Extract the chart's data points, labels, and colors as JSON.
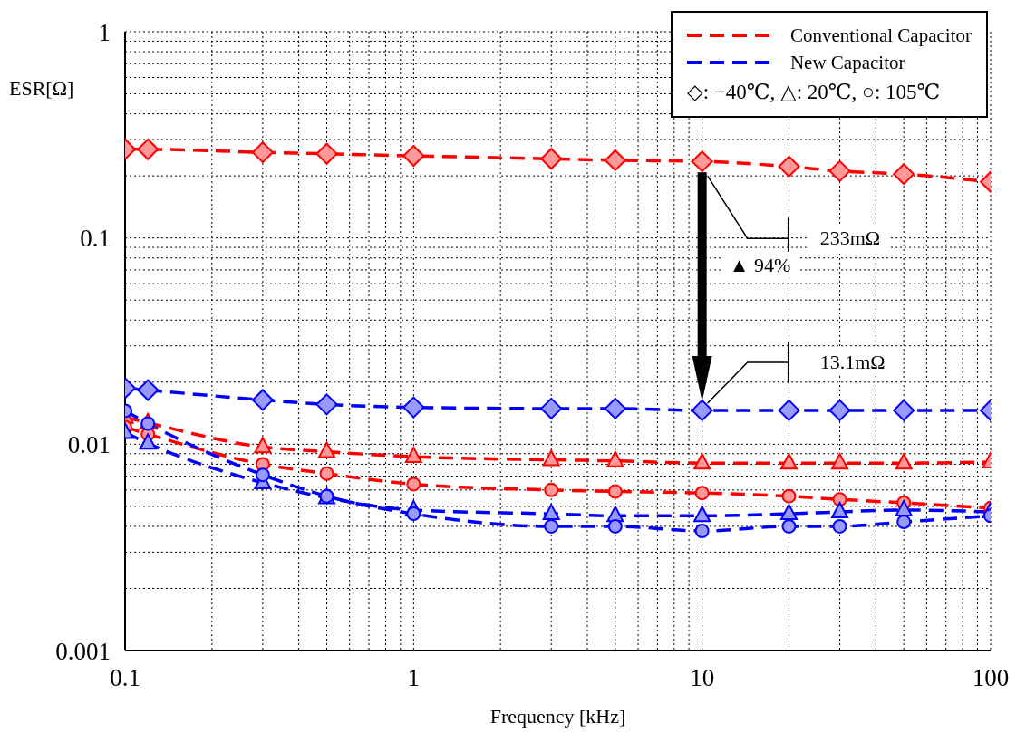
{
  "chart_data": {
    "type": "line",
    "xlabel": "Frequency [kHz]",
    "ylabel": "ESR[Ω]",
    "log": "xy",
    "grid": true,
    "legend": "top right",
    "line_style": "dashed",
    "x": [
      0.1,
      0.12,
      0.3,
      0.5,
      1,
      3,
      5,
      10,
      20,
      30,
      50,
      100
    ],
    "xlim": [
      0.1,
      100
    ],
    "xticks": [
      0.1,
      {
        "value": 0.2,
        "label": null
      },
      {
        "value": 0.3,
        "label": null
      },
      {
        "value": 0.4,
        "label": null
      },
      {
        "value": 0.5,
        "label": null
      },
      {
        "value": 0.6,
        "label": null
      },
      {
        "value": 0.7,
        "label": null
      },
      {
        "value": 0.8,
        "label": null
      },
      {
        "value": 0.9,
        "label": null
      },
      1,
      {
        "value": 2,
        "label": null
      },
      {
        "value": 3,
        "label": null
      },
      {
        "value": 4,
        "label": null
      },
      {
        "value": 5,
        "label": null
      },
      {
        "value": 6,
        "label": null
      },
      {
        "value": 7,
        "label": null
      },
      {
        "value": 8,
        "label": null
      },
      {
        "value": 9,
        "label": null
      },
      10,
      {
        "value": 20,
        "label": null
      },
      {
        "value": 30,
        "label": null
      },
      {
        "value": 40,
        "label": null
      },
      {
        "value": 50,
        "label": null
      },
      {
        "value": 60,
        "label": null
      },
      {
        "value": 70,
        "label": null
      },
      {
        "value": 80,
        "label": null
      },
      {
        "value": 90,
        "label": null
      },
      100
    ],
    "ylim": [
      0.001,
      1
    ],
    "yticks": [
      0.001,
      {
        "value": 0.002,
        "label": null
      },
      {
        "value": 0.003,
        "label": null
      },
      {
        "value": 0.004,
        "label": null
      },
      {
        "value": 0.005,
        "label": null
      },
      {
        "value": 0.006,
        "label": null
      },
      {
        "value": 0.007,
        "label": null
      },
      {
        "value": 0.008,
        "label": null
      },
      {
        "value": 0.009,
        "label": null
      },
      0.01,
      {
        "value": 0.02,
        "label": null
      },
      {
        "value": 0.03,
        "label": null
      },
      {
        "value": 0.04,
        "label": null
      },
      {
        "value": 0.05,
        "label": null
      },
      {
        "value": 0.06,
        "label": null
      },
      {
        "value": 0.07,
        "label": null
      },
      {
        "value": 0.08,
        "label": null
      },
      {
        "value": 0.09,
        "label": null
      },
      0.1,
      {
        "value": 0.2,
        "label": null
      },
      {
        "value": 0.3,
        "label": null
      },
      {
        "value": 0.4,
        "label": null
      },
      {
        "value": 0.5,
        "label": null
      },
      {
        "value": 0.6,
        "label": null
      },
      {
        "value": 0.7,
        "label": null
      },
      {
        "value": 0.8,
        "label": null
      },
      {
        "value": 0.9,
        "label": null
      },
      1
    ],
    "series": [
      {
        "name": "Conventional Capacitor",
        "color": "#ff0000",
        "marker": "diamond",
        "values": [
          0.269,
          0.269,
          0.26,
          0.256,
          0.25,
          0.242,
          0.238,
          0.235,
          0.222,
          0.211,
          0.204,
          0.187
        ]
      },
      {
        "color": "#ff0000",
        "marker": "triangle",
        "values": [
          0.0135,
          0.0127,
          0.0097,
          0.0092,
          0.0087,
          0.0084,
          0.0083,
          0.0081,
          0.0081,
          0.0081,
          0.0081,
          0.0082
        ]
      },
      {
        "color": "#ff0000",
        "marker": "circle",
        "values": [
          0.0121,
          0.0112,
          0.008,
          0.0072,
          0.0064,
          0.006,
          0.0059,
          0.0058,
          0.0056,
          0.0054,
          0.0052,
          0.0049
        ]
      },
      {
        "name": "New Capacitor",
        "color": "#0000ff",
        "marker": "diamond",
        "values": [
          0.0187,
          0.0183,
          0.0164,
          0.0156,
          0.0151,
          0.0149,
          0.0149,
          0.0146,
          0.0146,
          0.0146,
          0.0146,
          0.0146
        ]
      },
      {
        "color": "#0000ff",
        "marker": "triangle",
        "values": [
          0.0114,
          0.0101,
          0.0065,
          0.0055,
          0.0048,
          0.0046,
          0.0045,
          0.0045,
          0.0046,
          0.0047,
          0.0048,
          0.0047
        ]
      },
      {
        "color": "#0000ff",
        "marker": "circle",
        "values": [
          0.0145,
          0.0126,
          0.0071,
          0.0056,
          0.0046,
          0.004,
          0.004,
          0.0038,
          0.004,
          0.004,
          0.0042,
          0.0045
        ]
      }
    ],
    "annotations": [
      "◇: −40℃,  △: 20℃,  ○: 105℃",
      "233mΩ",
      "13.1mΩ",
      "▲ 94%"
    ]
  }
}
